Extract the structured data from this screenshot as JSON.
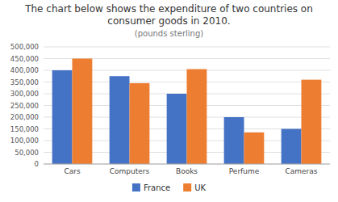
{
  "chart_data": {
    "type": "bar",
    "title": "The chart below shows the expenditure of two countries on consumer goods in 2010.",
    "subtitle": "(pounds sterling)",
    "categories": [
      "Cars",
      "Computers",
      "Books",
      "Perfume",
      "Cameras"
    ],
    "series": [
      {
        "name": "France",
        "color": "#4472c4",
        "values": [
          400000,
          375000,
          300000,
          200000,
          150000
        ]
      },
      {
        "name": "UK",
        "color": "#ed7d31",
        "values": [
          450000,
          345000,
          405000,
          135000,
          360000
        ]
      }
    ],
    "ylim": [
      0,
      500000
    ],
    "yticks": [
      0,
      {
        "value": 50000,
        "label": "50,000"
      },
      {
        "value": 100000,
        "label": "100,000"
      },
      {
        "value": 150000,
        "label": "150,000"
      },
      {
        "value": 200000,
        "label": "200,000"
      },
      {
        "value": 250000,
        "label": "250,000"
      },
      {
        "value": 300000,
        "label": "300,000"
      },
      {
        "value": 350000,
        "label": "350,000"
      },
      {
        "value": 400000,
        "label": "400,000"
      },
      {
        "value": 450000,
        "label": "450,000"
      },
      {
        "value": 500000,
        "label": "500,000"
      }
    ],
    "grid": true,
    "legend": "bottom"
  }
}
